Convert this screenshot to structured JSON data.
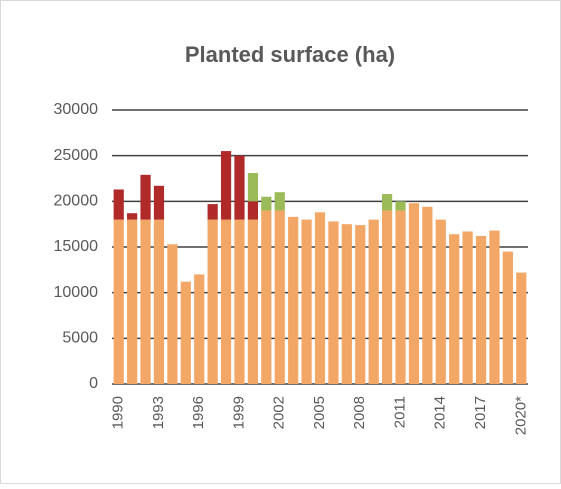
{
  "chart_data": {
    "type": "stacked_bar",
    "title": "Planted surface (ha)",
    "categories": [
      "1990",
      null,
      null,
      "1993",
      null,
      null,
      "1996",
      null,
      null,
      "1999",
      null,
      null,
      "2002",
      null,
      null,
      "2005",
      null,
      null,
      "2008",
      null,
      null,
      "2011",
      null,
      null,
      "2014",
      null,
      null,
      "2017",
      null,
      null,
      "2020*"
    ],
    "series": [
      {
        "color": "#f2a766",
        "values": [
          18000,
          18000,
          18000,
          18000,
          15300,
          11200,
          12000,
          18000,
          18000,
          18000,
          18000,
          19000,
          19000,
          18300,
          18000,
          18800,
          17800,
          17500,
          17400,
          18000,
          19000,
          19000,
          19800,
          19400,
          18000,
          16400,
          16700,
          16200,
          16800,
          14500,
          12200
        ]
      },
      {
        "color": "#b02a2a",
        "values": [
          3300,
          700,
          4900,
          3700,
          0,
          0,
          0,
          1700,
          7500,
          7000,
          2000,
          0,
          0,
          0,
          0,
          0,
          0,
          0,
          0,
          0,
          0,
          0,
          0,
          0,
          0,
          0,
          0,
          0,
          0,
          0,
          0
        ]
      },
      {
        "color": "#9bbb59",
        "values": [
          0,
          0,
          0,
          0,
          0,
          0,
          0,
          0,
          0,
          0,
          3100,
          1500,
          2000,
          0,
          0,
          0,
          0,
          0,
          0,
          0,
          1800,
          1000,
          0,
          0,
          0,
          0,
          0,
          0,
          0,
          0,
          0
        ]
      }
    ],
    "ylim": [
      0,
      30000
    ],
    "yticks": [
      0,
      5000,
      10000,
      15000,
      20000,
      25000,
      30000
    ],
    "grid": true
  }
}
